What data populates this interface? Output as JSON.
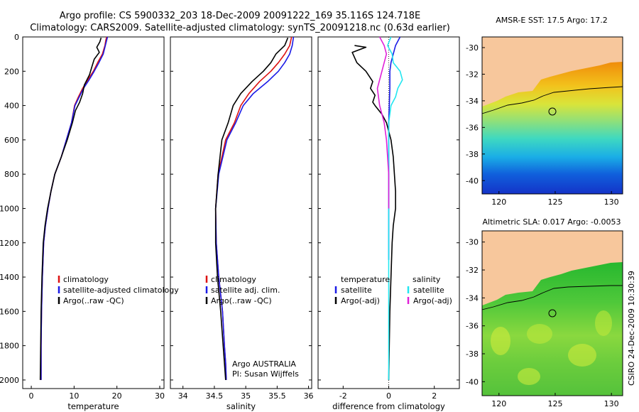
{
  "header": {
    "line1": "Argo profile: CS 5900332_203 18-Dec-2009 20091222_169 35.116S 124.718E",
    "line2": "Climatology: CARS2009. Satellite-adjusted climatology: synTS_20091218.nc (0.63d earlier)"
  },
  "side_text": "CSIRO 24-Dec-2009 10:30:39",
  "colors": {
    "climatology": "#dd1111",
    "satellite": "#1a1ae6",
    "argo": "#000000",
    "sal_satellite": "#22e6f0",
    "sal_argo": "#e020d8",
    "land": "#f7c79c"
  },
  "chart_data": [
    {
      "id": "temperature",
      "type": "line",
      "xlabel": "temperature",
      "xlim": [
        -2,
        31
      ],
      "ylim": [
        0,
        2050
      ],
      "y_reversed": true,
      "xticks": [
        0,
        10,
        20,
        30
      ],
      "yticks": [
        0,
        200,
        400,
        600,
        800,
        1000,
        1200,
        1400,
        1600,
        1800,
        2000
      ],
      "legend": [
        "climatology",
        "satellite-adjusted climatology",
        "Argo(..raw -QC)"
      ],
      "series": [
        {
          "name": "climatology",
          "color": "climatology",
          "x": [
            17.6,
            17.4,
            17.2,
            16.6,
            15.5,
            14.5,
            13.2,
            12.0,
            11.0,
            10.1,
            9.4,
            8.2,
            7.0,
            5.5,
            4.6,
            3.9,
            3.3,
            2.9,
            2.6,
            2.4,
            2.3,
            2.3
          ],
          "y": [
            0,
            20,
            50,
            100,
            150,
            200,
            250,
            300,
            350,
            400,
            500,
            600,
            700,
            800,
            900,
            1000,
            1100,
            1200,
            1400,
            1600,
            1800,
            2000
          ]
        },
        {
          "name": "satellite-adjusted climatology",
          "color": "satellite",
          "x": [
            17.8,
            17.6,
            17.3,
            16.8,
            15.8,
            14.7,
            13.5,
            12.2,
            11.2,
            10.2,
            9.4,
            8.2,
            7.0,
            5.5,
            4.6,
            3.9,
            3.3,
            2.9,
            2.6,
            2.4,
            2.3,
            2.3
          ],
          "y": [
            0,
            20,
            50,
            100,
            150,
            200,
            250,
            300,
            350,
            400,
            500,
            600,
            700,
            800,
            900,
            1000,
            1100,
            1200,
            1400,
            1600,
            1800,
            2000
          ]
        },
        {
          "name": "Argo(..raw -QC)",
          "color": "argo",
          "x": [
            16.3,
            16.0,
            15.3,
            15.9,
            14.7,
            14.2,
            13.6,
            12.4,
            12.0,
            11.3,
            10.3,
            9.6,
            8.4,
            7.0,
            5.5,
            4.6,
            3.8,
            3.2,
            2.8,
            2.5,
            2.3,
            2.2,
            2.1
          ],
          "y": [
            5,
            30,
            60,
            90,
            130,
            170,
            220,
            280,
            330,
            380,
            430,
            500,
            600,
            700,
            800,
            900,
            1000,
            1100,
            1200,
            1400,
            1600,
            1800,
            2000
          ]
        }
      ]
    },
    {
      "id": "salinity",
      "type": "line",
      "xlabel": "salinity",
      "xlim": [
        33.8,
        36.05
      ],
      "ylim": [
        0,
        2050
      ],
      "y_reversed": true,
      "xticks": [
        34,
        34.5,
        35,
        35.5,
        36
      ],
      "yticks": [
        0,
        200,
        400,
        600,
        800,
        1000,
        1200,
        1400,
        1600,
        1800,
        2000
      ],
      "legend": [
        "climatology",
        "satellite adj. clim.",
        "Argo(..raw -QC)"
      ],
      "annotation": [
        "Argo AUSTRALIA",
        "PI: Susan Wijffels"
      ],
      "series": [
        {
          "name": "climatology",
          "color": "climatology",
          "x": [
            35.73,
            35.7,
            35.62,
            35.52,
            35.4,
            35.22,
            35.05,
            34.92,
            34.82,
            34.68,
            34.56,
            34.52,
            34.53,
            34.57,
            34.63,
            34.66,
            34.68,
            34.69
          ],
          "y": [
            0,
            50,
            100,
            150,
            200,
            260,
            330,
            400,
            500,
            600,
            800,
            1000,
            1200,
            1400,
            1600,
            1800,
            1900,
            2000
          ]
        },
        {
          "name": "satellite adj. clim.",
          "color": "satellite",
          "x": [
            35.76,
            35.74,
            35.7,
            35.62,
            35.52,
            35.35,
            35.12,
            34.96,
            34.84,
            34.7,
            34.57,
            34.52,
            34.53,
            34.57,
            34.63,
            34.66,
            34.68,
            34.69
          ],
          "y": [
            0,
            50,
            100,
            150,
            200,
            260,
            330,
            400,
            500,
            600,
            800,
            1000,
            1200,
            1400,
            1600,
            1800,
            1900,
            2000
          ]
        },
        {
          "name": "Argo(..raw -QC)",
          "color": "argo",
          "x": [
            35.67,
            35.62,
            35.48,
            35.4,
            35.28,
            35.1,
            34.92,
            34.8,
            34.72,
            34.62,
            34.56,
            34.52,
            34.52,
            34.55,
            34.6,
            34.64,
            34.66,
            34.68
          ],
          "y": [
            5,
            50,
            100,
            150,
            200,
            260,
            330,
            400,
            500,
            600,
            800,
            1000,
            1200,
            1400,
            1600,
            1800,
            1900,
            2000
          ]
        }
      ]
    },
    {
      "id": "difference",
      "type": "line",
      "xlabel": "difference from climatology",
      "xlim": [
        -3.1,
        3.1
      ],
      "ylim": [
        0,
        2050
      ],
      "y_reversed": true,
      "xticks": [
        -2,
        0,
        2
      ],
      "yticks": [
        0,
        200,
        400,
        600,
        800,
        1000,
        1200,
        1400,
        1600,
        1800,
        2000
      ],
      "legend_headers": [
        "temperature",
        "salinity"
      ],
      "legend": [
        "satellite",
        "Argo(-adj)",
        "satellite",
        "Argo(-adj)"
      ],
      "series": [
        {
          "name": "temperature satellite",
          "color": "satellite",
          "x": [
            0.5,
            0.3,
            0.2,
            0.1,
            0.05,
            0.05,
            0.0,
            0.0,
            0.0,
            0.0,
            0.0
          ],
          "y": [
            0,
            50,
            100,
            150,
            200,
            300,
            500,
            800,
            1000,
            1200,
            1300
          ]
        },
        {
          "name": "temperature Argo(-adj)",
          "color": "argo",
          "x": [
            -1.5,
            -1.0,
            -1.6,
            -1.4,
            -1.0,
            -0.7,
            -0.8,
            -0.6,
            -0.7,
            -0.6,
            -0.3,
            -0.1,
            0.1,
            0.2,
            0.25,
            0.3,
            0.3,
            0.2,
            0.15,
            0.1,
            0.05,
            0.0
          ],
          "y": [
            50,
            60,
            90,
            150,
            200,
            260,
            300,
            340,
            380,
            400,
            450,
            500,
            600,
            700,
            800,
            900,
            1000,
            1100,
            1200,
            1400,
            1600,
            2000
          ]
        },
        {
          "name": "salinity satellite",
          "color": "sal_satellite",
          "x": [
            0.1,
            -0.05,
            0.15,
            0.2,
            0.5,
            0.6,
            0.4,
            0.3,
            0.1,
            0.05,
            0.0,
            0.0,
            0.0
          ],
          "y": [
            0,
            50,
            100,
            150,
            200,
            250,
            300,
            350,
            400,
            450,
            500,
            800,
            2000
          ]
        },
        {
          "name": "salinity Argo(-adj)",
          "color": "sal_argo",
          "x": [
            -0.4,
            -0.2,
            -0.1,
            -0.3,
            -0.5,
            -0.4,
            -0.3,
            -0.2,
            -0.1,
            -0.05,
            0.0,
            0.0
          ],
          "y": [
            0,
            50,
            100,
            200,
            300,
            400,
            450,
            500,
            600,
            700,
            800,
            1000
          ]
        }
      ]
    }
  ],
  "maps": [
    {
      "id": "sst",
      "title": "AMSR-E SST: 17.5 Argo: 17.2",
      "xticks": [
        "120",
        "125",
        "130"
      ],
      "yticks": [
        "-30",
        "-32",
        "-34",
        "-36",
        "-38",
        "-40"
      ],
      "xlim": [
        118.5,
        131
      ],
      "ylim": [
        -41,
        -29.2
      ]
    },
    {
      "id": "sla",
      "title": "Altimetric SLA: 0.017 Argo: -0.0053",
      "xticks": [
        "120",
        "125",
        "130"
      ],
      "yticks": [
        "-30",
        "-32",
        "-34",
        "-36",
        "-38",
        "-40"
      ],
      "xlim": [
        118.5,
        131
      ],
      "ylim": [
        -41,
        -29.2
      ]
    }
  ]
}
